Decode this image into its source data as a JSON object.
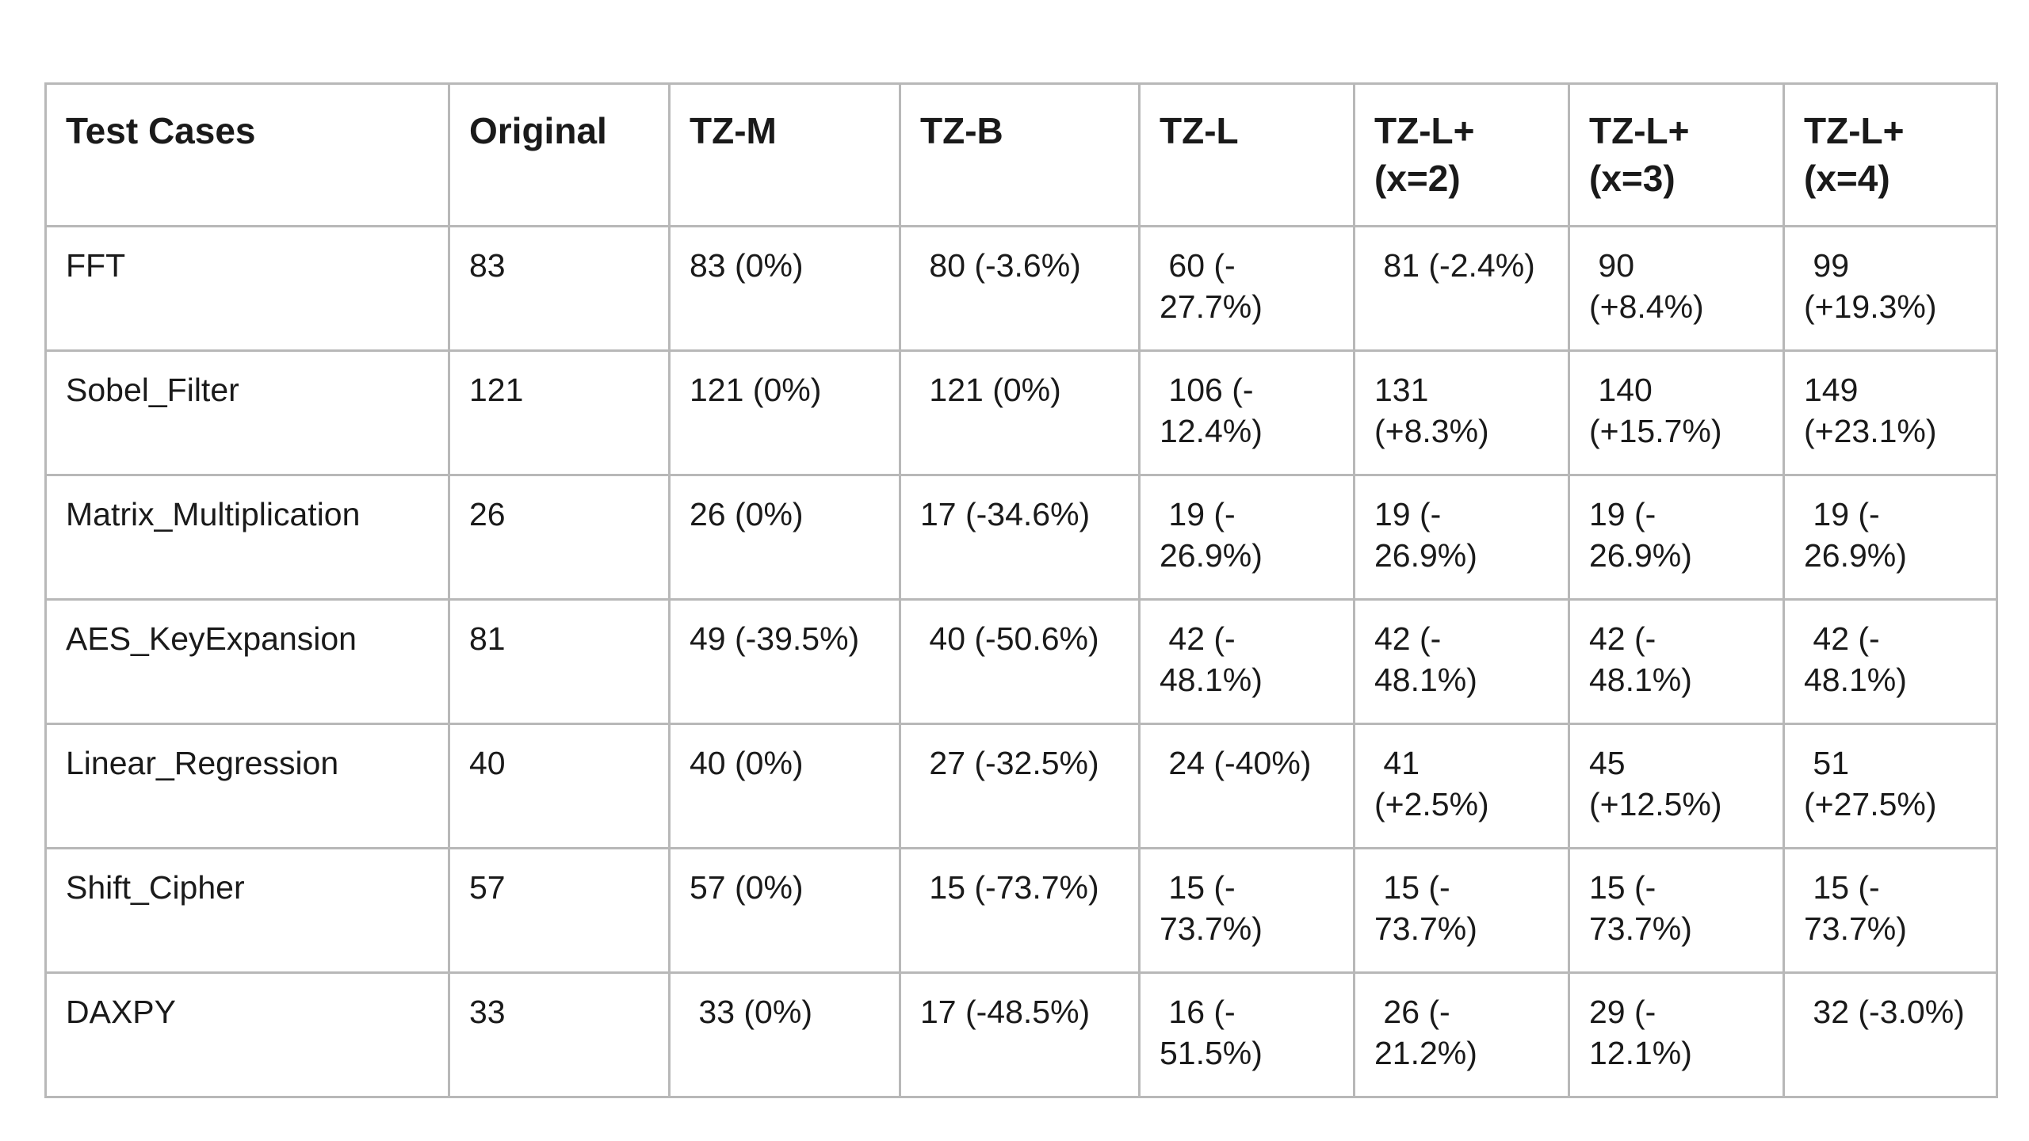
{
  "table": {
    "headers": [
      "Test Cases",
      "Original",
      "TZ-M",
      "TZ-B",
      "TZ-L",
      "TZ-L+\n(x=2)",
      "TZ-L+\n(x=3)",
      "TZ-L+\n(x=4)"
    ],
    "rows": [
      [
        "FFT",
        "83",
        "83 (0%)",
        " 80 (-3.6%)",
        " 60 (-\n27.7%)",
        " 81 (-2.4%)",
        " 90\n(+8.4%)",
        " 99\n(+19.3%)"
      ],
      [
        "Sobel_Filter",
        "121",
        "121 (0%)",
        " 121 (0%)",
        " 106 (-\n12.4%)",
        "131\n(+8.3%)",
        " 140\n(+15.7%)",
        "149\n(+23.1%)"
      ],
      [
        "Matrix_Multiplication",
        "26",
        "26 (0%)",
        "17 (-34.6%)",
        " 19 (-\n26.9%)",
        "19 (-\n26.9%)",
        "19 (-\n26.9%)",
        " 19 (-\n26.9%)"
      ],
      [
        "AES_KeyExpansion",
        "81",
        "49 (-39.5%)",
        " 40 (-50.6%)",
        " 42 (-\n48.1%)",
        "42 (-\n48.1%)",
        "42 (-\n48.1%)",
        " 42 (-\n48.1%)"
      ],
      [
        "Linear_Regression",
        "40",
        "40 (0%)",
        " 27 (-32.5%)",
        " 24 (-40%)",
        " 41\n(+2.5%)",
        "45\n(+12.5%)",
        " 51\n(+27.5%)"
      ],
      [
        "Shift_Cipher",
        "57",
        "57 (0%)",
        " 15 (-73.7%)",
        " 15 (-\n73.7%)",
        " 15 (-\n73.7%)",
        "15 (-\n73.7%)",
        " 15 (-\n73.7%)"
      ],
      [
        "DAXPY",
        "33",
        " 33 (0%)",
        "17 (-48.5%)",
        " 16 (-\n51.5%)",
        " 26 (-\n21.2%)",
        "29 (-\n12.1%)",
        " 32 (-3.0%)"
      ]
    ]
  }
}
